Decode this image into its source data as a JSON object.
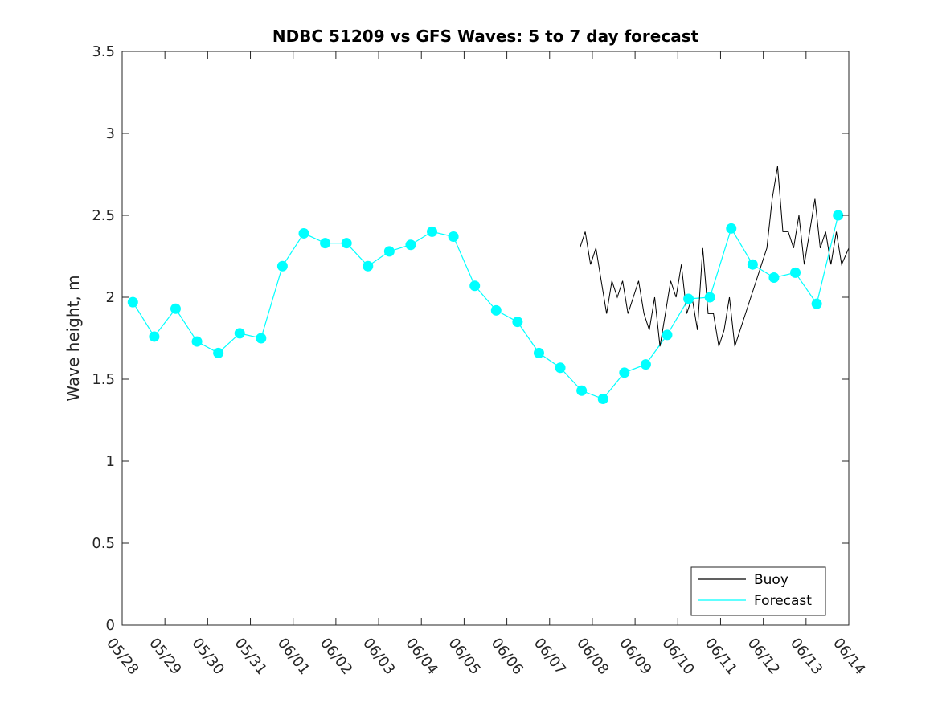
{
  "chart_data": {
    "type": "line",
    "title": "NDBC 51209 vs GFS Waves: 5 to 7 day forecast",
    "xlabel": "",
    "ylabel": "Wave height, m",
    "x_unit": "date",
    "xlim": [
      "05/28",
      "06/14"
    ],
    "ylim": [
      0,
      3.5
    ],
    "x_ticks": [
      "05/28",
      "05/29",
      "05/30",
      "05/31",
      "06/01",
      "06/02",
      "06/03",
      "06/04",
      "06/05",
      "06/06",
      "06/07",
      "06/08",
      "06/09",
      "06/10",
      "06/11",
      "06/12",
      "06/13",
      "06/14"
    ],
    "y_ticks": [
      "0",
      "0.5",
      "1",
      "1.5",
      "2",
      "2.5",
      "3",
      "3.5"
    ],
    "grid": false,
    "legend": {
      "position": "bottom-right",
      "entries": [
        "Buoy",
        "Forecast"
      ]
    },
    "colors": {
      "buoy": "#000000",
      "forecast": "#00ffff"
    },
    "series": [
      {
        "name": "Buoy",
        "color": "#000000",
        "x": [
          "06/07 17:00",
          "06/07 20:00",
          "06/07 23:00",
          "06/08 02:00",
          "06/08 05:00",
          "06/08 08:00",
          "06/08 11:00",
          "06/08 14:00",
          "06/08 17:00",
          "06/08 20:00",
          "06/08 23:00",
          "06/09 02:00",
          "06/09 05:00",
          "06/09 08:00",
          "06/09 11:00",
          "06/09 14:00",
          "06/09 17:00",
          "06/09 20:00",
          "06/09 23:00",
          "06/10 02:00",
          "06/10 05:00",
          "06/10 08:00",
          "06/10 11:00",
          "06/10 14:00",
          "06/10 17:00",
          "06/10 20:00",
          "06/10 23:00",
          "06/11 02:00",
          "06/11 05:00",
          "06/11 08:00",
          "06/11 11:00",
          "06/11 14:00",
          "06/11 17:00",
          "06/11 20:00",
          "06/11 23:00",
          "06/12 02:00",
          "06/12 05:00",
          "06/12 08:00",
          "06/12 11:00",
          "06/12 14:00",
          "06/12 17:00",
          "06/12 20:00",
          "06/12 23:00",
          "06/13 02:00",
          "06/13 05:00",
          "06/13 08:00",
          "06/13 11:00",
          "06/13 14:00",
          "06/13 17:00",
          "06/13 20:00",
          "06/14 00:00"
        ],
        "y": [
          2.3,
          2.4,
          2.2,
          2.3,
          2.1,
          1.9,
          2.1,
          2.0,
          2.1,
          1.9,
          2.0,
          2.1,
          1.9,
          1.8,
          2.0,
          1.7,
          1.9,
          2.1,
          2.0,
          2.2,
          1.9,
          2.0,
          1.8,
          2.3,
          1.9,
          1.9,
          1.7,
          1.8,
          2.0,
          1.7,
          1.8,
          1.9,
          2.0,
          2.1,
          2.2,
          2.3,
          2.6,
          2.8,
          2.4,
          2.4,
          2.3,
          2.5,
          2.2,
          2.4,
          2.6,
          2.3,
          2.4,
          2.2,
          2.4,
          2.2,
          2.3
        ]
      },
      {
        "name": "Forecast",
        "color": "#00ffff",
        "x": [
          "05/28 06:00",
          "05/28 18:00",
          "05/29 06:00",
          "05/29 18:00",
          "05/30 06:00",
          "05/30 18:00",
          "05/31 06:00",
          "05/31 18:00",
          "06/01 06:00",
          "06/01 18:00",
          "06/02 06:00",
          "06/02 18:00",
          "06/03 06:00",
          "06/03 18:00",
          "06/04 06:00",
          "06/04 18:00",
          "06/05 06:00",
          "06/05 18:00",
          "06/06 06:00",
          "06/06 18:00",
          "06/07 06:00",
          "06/07 18:00",
          "06/08 06:00",
          "06/08 18:00",
          "06/09 06:00",
          "06/09 18:00",
          "06/10 06:00",
          "06/10 18:00",
          "06/11 06:00",
          "06/11 18:00",
          "06/12 06:00",
          "06/12 18:00",
          "06/13 06:00",
          "06/13 18:00"
        ],
        "y": [
          1.97,
          1.76,
          1.93,
          1.73,
          1.66,
          1.78,
          1.75,
          2.19,
          2.39,
          2.33,
          2.33,
          2.19,
          2.28,
          2.32,
          2.4,
          2.37,
          2.07,
          1.92,
          1.85,
          1.66,
          1.57,
          1.43,
          1.38,
          1.54,
          1.59,
          1.77,
          1.99,
          2.0,
          2.42,
          2.2,
          2.12,
          2.15,
          1.96,
          2.5
        ]
      }
    ],
    "markers": {
      "series": "Forecast",
      "x": [
        "05/28 06:00",
        "05/28 18:00",
        "05/29 06:00",
        "05/29 18:00",
        "05/30 06:00",
        "05/30 18:00",
        "05/31 06:00",
        "05/31 18:00",
        "06/01 06:00",
        "06/01 18:00",
        "06/02 06:00",
        "06/02 18:00",
        "06/03 06:00",
        "06/03 18:00",
        "06/04 06:00",
        "06/04 18:00",
        "06/05 06:00",
        "06/05 18:00",
        "06/06 06:00",
        "06/06 18:00",
        "06/07 06:00",
        "06/07 18:00",
        "06/08 06:00",
        "06/08 18:00",
        "06/09 06:00",
        "06/09 18:00",
        "06/10 06:00",
        "06/10 18:00",
        "06/11 06:00",
        "06/11 18:00",
        "06/12 06:00",
        "06/12 18:00",
        "06/13 06:00",
        "06/13 18:00"
      ],
      "y": [
        1.97,
        1.76,
        1.93,
        1.73,
        1.66,
        1.78,
        1.75,
        2.19,
        2.39,
        2.33,
        2.33,
        2.19,
        2.28,
        2.32,
        2.4,
        2.37,
        2.07,
        1.92,
        1.85,
        1.66,
        1.57,
        1.43,
        1.38,
        1.54,
        1.59,
        1.77,
        1.99,
        2.0,
        2.42,
        2.2,
        2.12,
        2.15,
        1.96,
        2.5
      ]
    }
  }
}
